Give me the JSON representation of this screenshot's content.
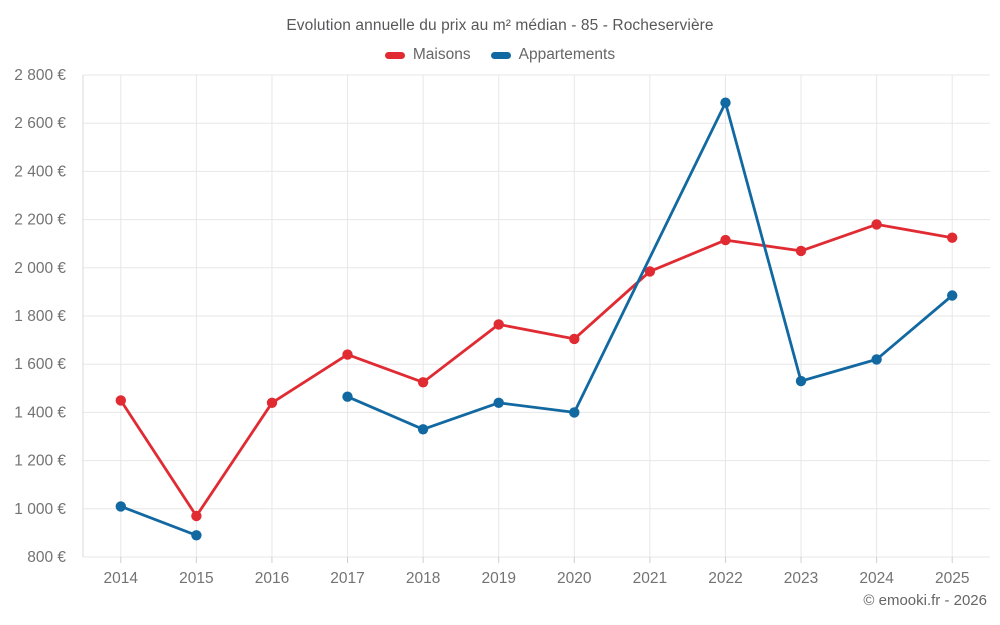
{
  "footer": "© emooki.fr - 2026",
  "chart_data": {
    "type": "line",
    "title": "Evolution annuelle du prix au m² médian - 85 - Rocheservière",
    "legend_position": "top",
    "grid": true,
    "categories": [
      "2014",
      "2015",
      "2016",
      "2017",
      "2018",
      "2019",
      "2020",
      "2021",
      "2022",
      "2023",
      "2024",
      "2025"
    ],
    "xlabel": "",
    "ylabel": "",
    "y_axis": {
      "min": 800,
      "max": 2800,
      "tick_step": 200,
      "unit": "€",
      "tick_labels": [
        "800 €",
        "1 000 €",
        "1 200 €",
        "1 400 €",
        "1 600 €",
        "1 800 €",
        "2 000 €",
        "2 200 €",
        "2 400 €",
        "2 600 €",
        "2 800 €"
      ]
    },
    "series": [
      {
        "name": "Maisons",
        "color": "#e02b33",
        "values": [
          1450,
          970,
          1440,
          1640,
          1525,
          1765,
          1705,
          1985,
          2115,
          2070,
          2180,
          2125
        ],
        "gap_years": [],
        "bridged_years": []
      },
      {
        "name": "Appartements",
        "color": "#1269a2",
        "values": [
          1010,
          890,
          null,
          1465,
          1330,
          1440,
          1400,
          null,
          2685,
          1530,
          1620,
          1885
        ],
        "gap_years": [
          "2016"
        ],
        "bridged_years": [
          "2021"
        ]
      }
    ]
  }
}
